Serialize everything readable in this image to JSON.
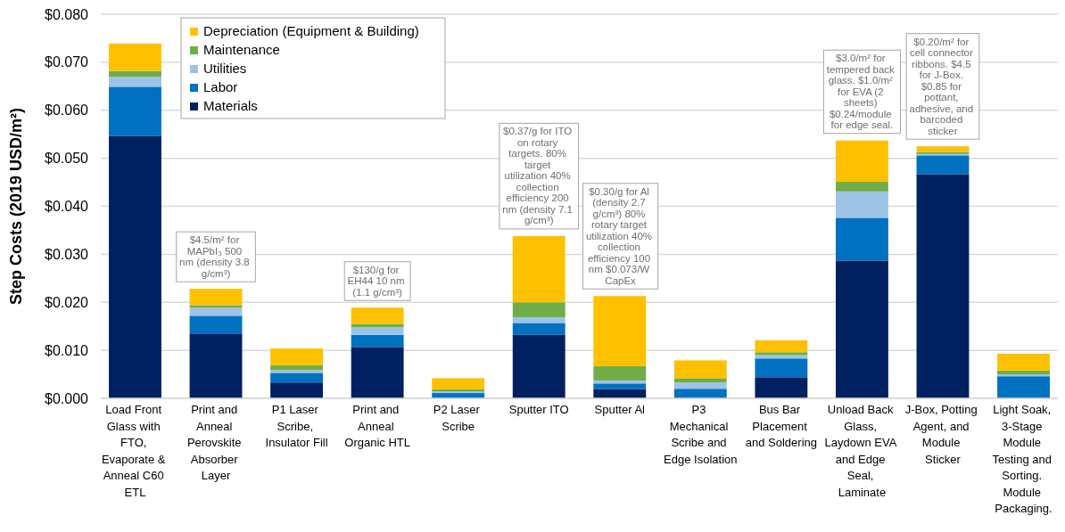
{
  "chart_data": {
    "type": "bar",
    "stacked": true,
    "ylabel": "Step Costs (2019 USD/m²)",
    "categories": [
      "Load Front Glass with FTO, Evaporate & Anneal C60 ETL",
      "Print and Anneal Perovskite Absorber Layer",
      "P1 Laser Scribe, Insulator Fill",
      "Print and Anneal Organic HTL",
      "P2 Laser Scribe",
      "Sputter ITO",
      "Sputter Al",
      "P3 Mechanical Scribe and Edge Isolation",
      "Bus Bar Placement and Soldering",
      "Unload Back Glass, Laydown EVA and Edge Seal, Laminate",
      "J-Box, Potting Agent, and Module Sticker",
      "Light Soak, 3-Stage Module Testing and Sorting. Module Packaging."
    ],
    "series": [
      {
        "name": "Materials",
        "color": "#002060",
        "values": [
          0.0546,
          0.0135,
          0.0033,
          0.0107,
          0,
          0.0132,
          0.0019,
          0,
          0.0044,
          0.0287,
          0.0467,
          0
        ]
      },
      {
        "name": "Labor",
        "color": "#0070c0",
        "values": [
          0.0103,
          0.0037,
          0.002,
          0.0025,
          0.0011,
          0.0025,
          0.0012,
          0.002,
          0.0039,
          0.0089,
          0.0039,
          0.0046
        ]
      },
      {
        "name": "Utilities",
        "color": "#9dc3e6",
        "values": [
          0.0021,
          0.0017,
          0.0006,
          0.0016,
          0.0003,
          0.0012,
          0.0006,
          0.0013,
          0.0007,
          0.0055,
          0.0003,
          0.0004
        ]
      },
      {
        "name": "Maintenance",
        "color": "#70ad47",
        "values": [
          0.0012,
          0.0005,
          0.001,
          0.0007,
          0.0005,
          0.0031,
          0.003,
          0.0009,
          0.0006,
          0.002,
          0.0004,
          0.0008
        ]
      },
      {
        "name": "Depreciation (Equipment & Building)",
        "color": "#ffc000",
        "values": [
          0.0057,
          0.0034,
          0.0035,
          0.0034,
          0.0023,
          0.0138,
          0.0146,
          0.0037,
          0.0025,
          0.0086,
          0.0012,
          0.0035
        ]
      }
    ],
    "ylim": [
      0,
      0.08
    ],
    "yticks": [
      {
        "value": 0,
        "label": "$0.000"
      },
      {
        "value": 0.01,
        "label": "$0.010"
      },
      {
        "value": 0.02,
        "label": "$0.020"
      },
      {
        "value": 0.03,
        "label": "$0.030"
      },
      {
        "value": 0.04,
        "label": "$0.040"
      },
      {
        "value": 0.05,
        "label": "$0.050"
      },
      {
        "value": 0.06,
        "label": "$0.060"
      },
      {
        "value": 0.07,
        "label": "$0.070"
      },
      {
        "value": 0.08,
        "label": "$0.080"
      }
    ],
    "grid": "y",
    "legend": "top left",
    "annotations": [
      "$4.5/m² for MAPbI₃ 500 nm (density 3.8 g/cm³)",
      "$130/g for EH44 10 nm (1.1 g/cm³)",
      "$0.37/g for ITO on rotary targets. 80% target utilization 40% collection efficiency 200 nm (density 7.1 g/cm³)",
      "$0.30/g for Al (density 2.7 g/cm³) 80% rotary target utilization 40% collection efficiency 100 nm $0.073/W CapEx",
      "$3.0/m² for tempered back glass. $1.0/m² for EVA (2 sheets) $0.24/module for edge seal.",
      "$0.20/m² for cell connector ribbons. $4.5 for J-Box. $0.85 for pottant, adhesive, and barcoded sticker"
    ]
  }
}
